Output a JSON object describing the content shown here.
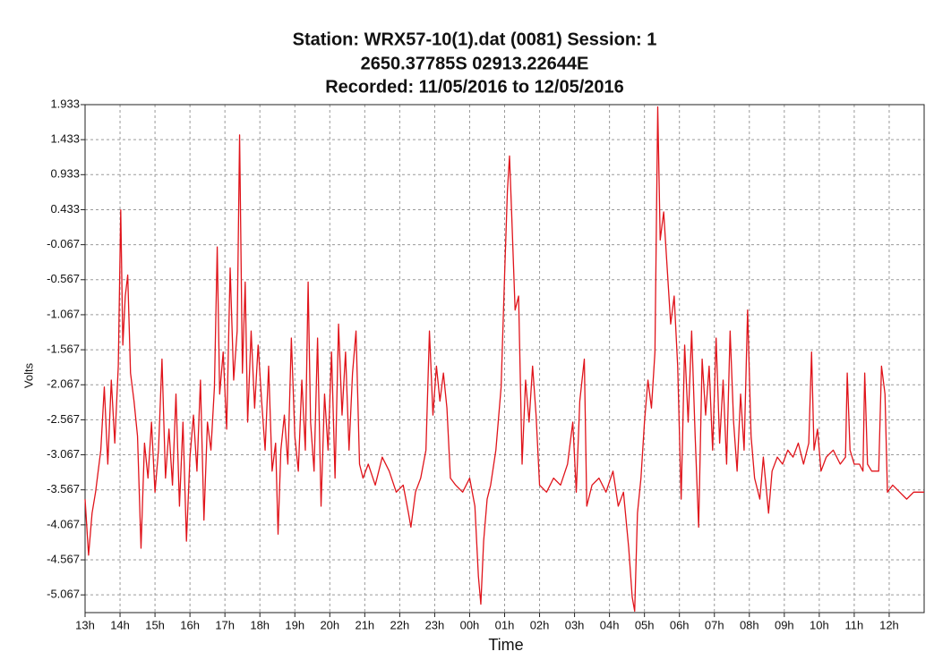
{
  "chart_data": {
    "type": "line",
    "title": [
      "Station: WRX57-10(1).dat (0081)    Session: 1",
      "2650.37785S  02913.22644E",
      "Recorded: 11/05/2016 to 12/05/2016"
    ],
    "xlabel": "Time",
    "ylabel": "Volts",
    "grid": true,
    "xlim": [
      0,
      24
    ],
    "ylim": [
      -5.32,
      1.933
    ],
    "xticks": [
      {
        "value": 0,
        "label": "13h"
      },
      {
        "value": 1,
        "label": "14h"
      },
      {
        "value": 2,
        "label": "15h"
      },
      {
        "value": 3,
        "label": "16h"
      },
      {
        "value": 4,
        "label": "17h"
      },
      {
        "value": 5,
        "label": "18h"
      },
      {
        "value": 6,
        "label": "19h"
      },
      {
        "value": 7,
        "label": "20h"
      },
      {
        "value": 8,
        "label": "21h"
      },
      {
        "value": 9,
        "label": "22h"
      },
      {
        "value": 10,
        "label": "23h"
      },
      {
        "value": 11,
        "label": "00h"
      },
      {
        "value": 12,
        "label": "01h"
      },
      {
        "value": 13,
        "label": "02h"
      },
      {
        "value": 14,
        "label": "03h"
      },
      {
        "value": 15,
        "label": "04h"
      },
      {
        "value": 16,
        "label": "05h"
      },
      {
        "value": 17,
        "label": "06h"
      },
      {
        "value": 18,
        "label": "07h"
      },
      {
        "value": 19,
        "label": "08h"
      },
      {
        "value": 20,
        "label": "09h"
      },
      {
        "value": 21,
        "label": "10h"
      },
      {
        "value": 22,
        "label": "11h"
      },
      {
        "value": 23,
        "label": "12h"
      }
    ],
    "yticks": [
      1.933,
      1.433,
      0.933,
      0.433,
      -0.067,
      -0.567,
      -1.067,
      -1.567,
      -2.067,
      -2.567,
      -3.067,
      -3.567,
      -4.067,
      -4.567,
      -5.067
    ],
    "x": [
      0,
      0.1,
      0.2,
      0.3,
      0.45,
      0.55,
      0.65,
      0.75,
      0.85,
      0.95,
      1.02,
      1.08,
      1.15,
      1.22,
      1.3,
      1.4,
      1.5,
      1.6,
      1.7,
      1.8,
      1.9,
      2.0,
      2.1,
      2.2,
      2.3,
      2.4,
      2.5,
      2.6,
      2.7,
      2.8,
      2.9,
      3.0,
      3.1,
      3.2,
      3.3,
      3.4,
      3.5,
      3.6,
      3.7,
      3.78,
      3.85,
      3.95,
      4.05,
      4.15,
      4.25,
      4.35,
      4.42,
      4.5,
      4.58,
      4.65,
      4.75,
      4.85,
      4.95,
      5.05,
      5.15,
      5.25,
      5.35,
      5.45,
      5.52,
      5.6,
      5.7,
      5.8,
      5.9,
      6.0,
      6.1,
      6.2,
      6.3,
      6.38,
      6.45,
      6.55,
      6.65,
      6.75,
      6.85,
      6.95,
      7.05,
      7.15,
      7.25,
      7.35,
      7.45,
      7.55,
      7.65,
      7.75,
      7.85,
      7.95,
      8.1,
      8.3,
      8.5,
      8.7,
      8.9,
      9.1,
      9.25,
      9.32,
      9.45,
      9.6,
      9.75,
      9.85,
      9.95,
      10.05,
      10.15,
      10.25,
      10.35,
      10.45,
      10.6,
      10.8,
      11.0,
      11.15,
      11.25,
      11.32,
      11.4,
      11.5,
      11.6,
      11.75,
      11.9,
      12.0,
      12.08,
      12.14,
      12.2,
      12.3,
      12.4,
      12.5,
      12.6,
      12.7,
      12.8,
      12.9,
      13.0,
      13.2,
      13.4,
      13.6,
      13.8,
      13.95,
      14.05,
      14.15,
      14.28,
      14.35,
      14.5,
      14.7,
      14.9,
      15.1,
      15.25,
      15.4,
      15.55,
      15.65,
      15.72,
      15.8,
      15.9,
      16.0,
      16.1,
      16.2,
      16.3,
      16.38,
      16.45,
      16.55,
      16.65,
      16.75,
      16.85,
      16.95,
      17.05,
      17.15,
      17.25,
      17.35,
      17.45,
      17.55,
      17.65,
      17.75,
      17.85,
      17.95,
      18.05,
      18.15,
      18.25,
      18.35,
      18.45,
      18.55,
      18.65,
      18.75,
      18.85,
      18.95,
      19.05,
      19.15,
      19.3,
      19.4,
      19.55,
      19.65,
      19.8,
      19.95,
      20.1,
      20.25,
      20.4,
      20.55,
      20.7,
      20.78,
      20.85,
      20.95,
      21.05,
      21.2,
      21.4,
      21.6,
      21.75,
      21.8,
      21.88,
      22.0,
      22.15,
      22.25,
      22.3,
      22.38,
      22.5,
      22.7,
      22.78,
      22.88,
      22.95,
      23.1,
      23.3,
      23.5,
      23.7,
      23.9,
      24.0
    ],
    "series": [
      {
        "color": "#e0141b",
        "values": [
          -3.7,
          -4.5,
          -3.9,
          -3.6,
          -3.0,
          -2.1,
          -3.2,
          -2.0,
          -2.9,
          -1.8,
          0.43,
          -1.5,
          -0.8,
          -0.5,
          -1.9,
          -2.3,
          -2.8,
          -4.4,
          -2.9,
          -3.4,
          -2.6,
          -3.6,
          -3.0,
          -1.7,
          -3.4,
          -2.7,
          -3.5,
          -2.2,
          -3.8,
          -2.6,
          -4.3,
          -3.1,
          -2.5,
          -3.3,
          -2.0,
          -4.0,
          -2.6,
          -3.0,
          -2.1,
          -0.1,
          -2.2,
          -1.6,
          -2.7,
          -0.4,
          -2.0,
          -1.3,
          1.5,
          -1.9,
          -0.6,
          -2.6,
          -1.3,
          -2.4,
          -1.5,
          -2.3,
          -3.0,
          -1.8,
          -3.3,
          -2.9,
          -4.2,
          -3.0,
          -2.5,
          -3.2,
          -1.4,
          -2.8,
          -3.3,
          -2.0,
          -3.0,
          -0.6,
          -2.6,
          -3.3,
          -1.4,
          -3.8,
          -2.2,
          -3.0,
          -1.6,
          -3.4,
          -1.2,
          -2.5,
          -1.6,
          -3.0,
          -1.9,
          -1.3,
          -3.2,
          -3.4,
          -3.2,
          -3.5,
          -3.1,
          -3.3,
          -3.6,
          -3.5,
          -3.9,
          -4.1,
          -3.6,
          -3.4,
          -3.0,
          -1.3,
          -2.5,
          -1.8,
          -2.3,
          -1.9,
          -2.4,
          -3.4,
          -3.5,
          -3.6,
          -3.4,
          -3.8,
          -4.8,
          -5.2,
          -4.3,
          -3.7,
          -3.5,
          -3.0,
          -2.1,
          -0.5,
          0.7,
          1.2,
          0.4,
          -1.0,
          -0.8,
          -3.2,
          -2.0,
          -2.6,
          -1.8,
          -2.5,
          -3.5,
          -3.6,
          -3.4,
          -3.5,
          -3.2,
          -2.6,
          -3.6,
          -2.3,
          -1.7,
          -3.8,
          -3.5,
          -3.4,
          -3.6,
          -3.3,
          -3.8,
          -3.6,
          -4.4,
          -5.1,
          -5.3,
          -3.9,
          -3.4,
          -2.6,
          -2.0,
          -2.4,
          -1.6,
          1.9,
          0.0,
          0.4,
          -0.4,
          -1.2,
          -0.8,
          -1.8,
          -3.7,
          -1.5,
          -2.6,
          -1.3,
          -2.8,
          -4.1,
          -1.7,
          -2.5,
          -1.8,
          -3.0,
          -1.4,
          -2.9,
          -2.0,
          -3.2,
          -1.3,
          -2.6,
          -3.3,
          -2.2,
          -3.0,
          -1.0,
          -2.8,
          -3.4,
          -3.7,
          -3.1,
          -3.9,
          -3.3,
          -3.1,
          -3.2,
          -3.0,
          -3.1,
          -2.9,
          -3.2,
          -2.9,
          -1.6,
          -3.0,
          -2.7,
          -3.3,
          -3.1,
          -3.0,
          -3.2,
          -3.1,
          -1.9,
          -3.0,
          -3.2,
          -3.2,
          -3.3,
          -1.9,
          -3.2,
          -3.3,
          -3.3,
          -1.8,
          -2.2,
          -3.6,
          -3.5,
          -3.6,
          -3.7,
          -3.6,
          -3.6,
          -3.6
        ]
      }
    ]
  }
}
